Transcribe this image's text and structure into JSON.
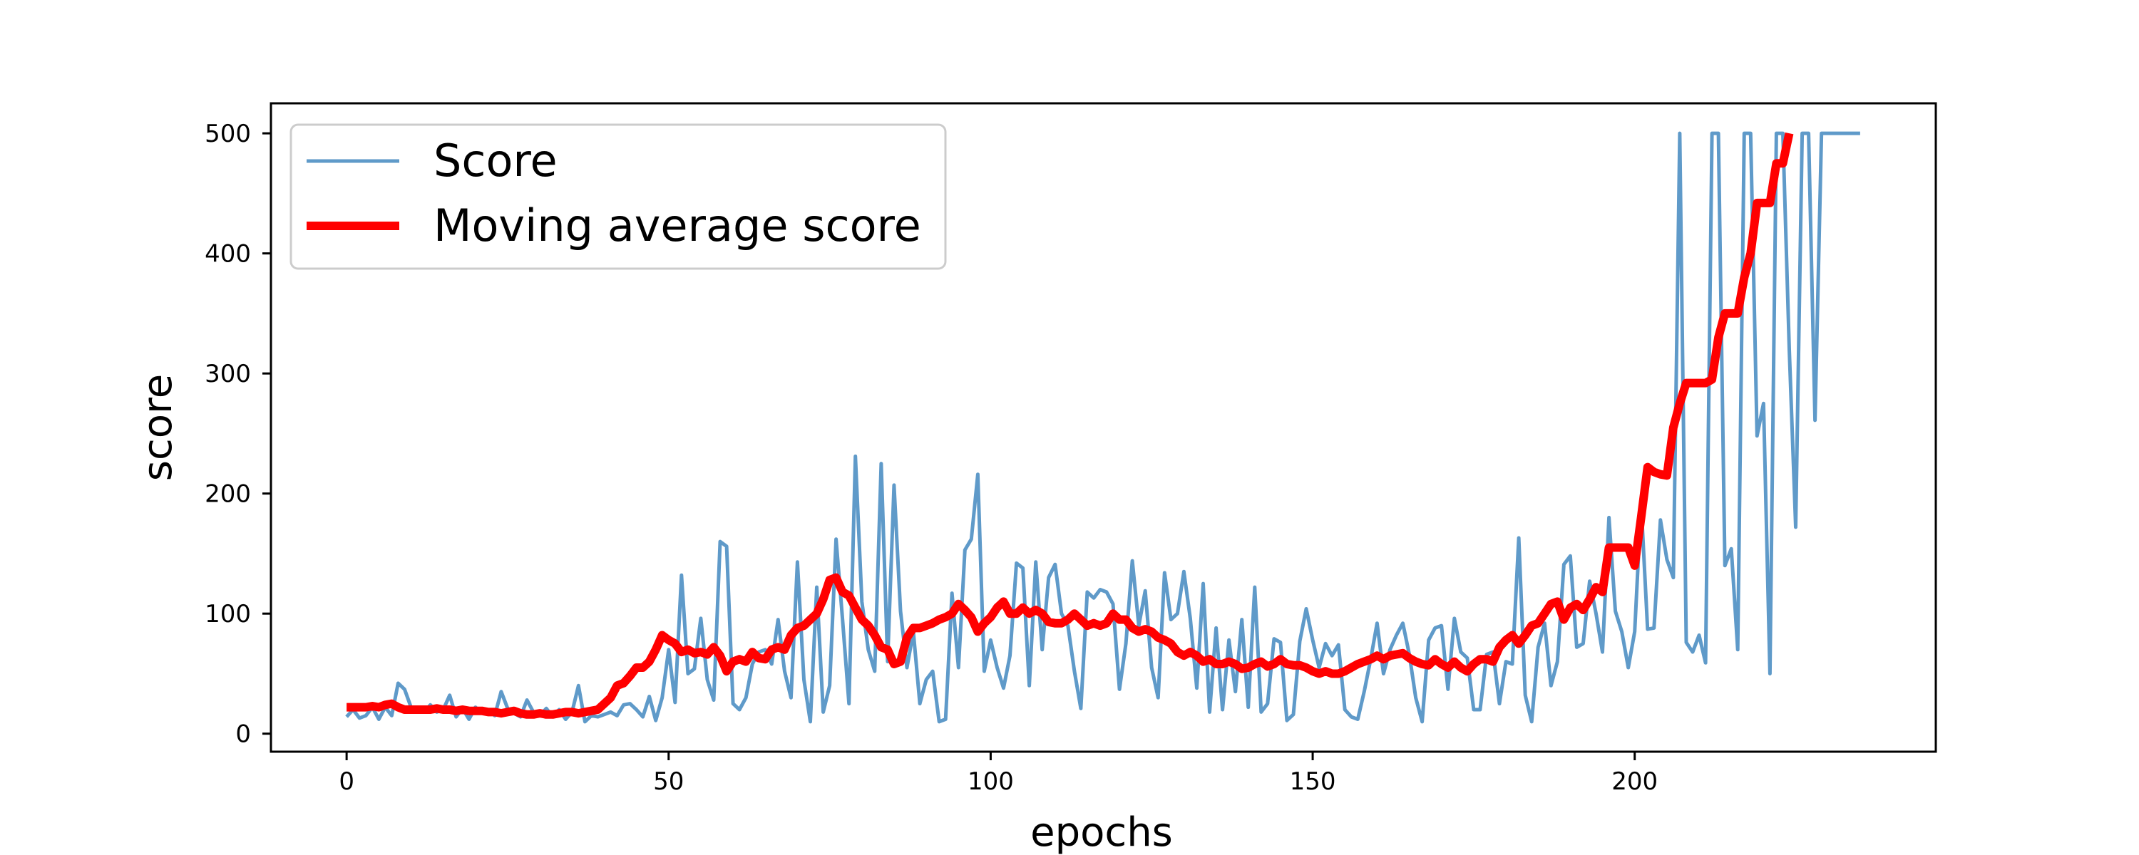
{
  "chart_data": {
    "type": "line",
    "title": "",
    "xlabel": "epochs",
    "ylabel": "score",
    "xlim": [
      -11.75,
      246.75
    ],
    "ylim": [
      -15,
      525
    ],
    "xticks": [
      0,
      50,
      100,
      150,
      200
    ],
    "yticks": [
      0,
      100,
      200,
      300,
      400,
      500
    ],
    "grid": false,
    "legend_position": "upper left",
    "series": [
      {
        "name": "Score",
        "color": "#5f9ac9",
        "values": [
          14,
          20,
          13,
          15,
          22,
          12,
          22,
          15,
          42,
          37,
          22,
          21,
          18,
          24,
          18,
          20,
          32,
          14,
          21,
          12,
          22,
          17,
          20,
          15,
          35,
          21,
          17,
          14,
          28,
          18,
          15,
          21,
          14,
          20,
          12,
          18,
          40,
          10,
          15,
          14,
          16,
          18,
          15,
          24,
          25,
          20,
          14,
          31,
          11,
          30,
          70,
          26,
          132,
          50,
          54,
          96,
          45,
          28,
          160,
          156,
          25,
          20,
          30,
          58,
          68,
          70,
          58,
          95,
          52,
          30,
          143,
          45,
          10,
          122,
          18,
          40,
          162,
          95,
          25,
          231,
          110,
          70,
          52,
          225,
          60,
          207,
          102,
          55,
          85,
          25,
          45,
          52,
          10,
          12,
          117,
          55,
          153,
          162,
          216,
          52,
          78,
          55,
          38,
          65,
          142,
          138,
          40,
          143,
          70,
          130,
          141,
          100,
          90,
          52,
          21,
          118,
          113,
          120,
          118,
          108,
          37,
          75,
          144,
          90,
          119,
          55,
          30,
          134,
          95,
          100,
          135,
          96,
          38,
          125,
          18,
          88,
          20,
          78,
          35,
          95,
          22,
          122,
          18,
          25,
          79,
          76,
          11,
          16,
          77,
          104,
          78,
          55,
          75,
          65,
          74,
          20,
          14,
          12,
          35,
          62,
          92,
          50,
          70,
          82,
          92,
          66,
          30,
          10,
          78,
          88,
          90,
          37,
          96,
          68,
          63,
          20,
          20,
          66,
          68,
          25,
          60,
          58,
          163,
          32,
          10,
          72,
          92,
          40,
          60,
          141,
          148,
          72,
          75,
          127,
          100,
          68,
          180,
          102,
          85,
          55,
          85,
          192,
          87,
          88,
          178,
          145,
          130,
          500,
          76,
          68,
          82,
          59,
          500,
          500,
          140,
          154,
          70,
          500,
          500,
          248,
          275,
          50,
          500,
          500,
          320,
          172,
          500,
          500,
          261,
          500,
          500,
          500,
          500,
          500,
          500,
          500
        ]
      },
      {
        "name": "Moving average score",
        "color": "#ff0000",
        "values": [
          22,
          22,
          22,
          22,
          23,
          22,
          24,
          25,
          22,
          20,
          20,
          20,
          20,
          20,
          21,
          20,
          20,
          19,
          20,
          19,
          19,
          19,
          18,
          18,
          17,
          18,
          19,
          17,
          16,
          16,
          17,
          16,
          16,
          17,
          18,
          18,
          17,
          18,
          19,
          20,
          25,
          30,
          40,
          42,
          48,
          55,
          55,
          60,
          70,
          82,
          78,
          75,
          68,
          70,
          67,
          68,
          66,
          72,
          65,
          52,
          60,
          62,
          60,
          68,
          63,
          62,
          70,
          72,
          70,
          82,
          88,
          90,
          95,
          100,
          112,
          128,
          130,
          118,
          115,
          105,
          95,
          90,
          82,
          72,
          70,
          58,
          60,
          80,
          88,
          88,
          90,
          92,
          95,
          97,
          100,
          108,
          103,
          97,
          85,
          92,
          97,
          105,
          110,
          100,
          100,
          105,
          100,
          103,
          100,
          93,
          92,
          92,
          95,
          100,
          95,
          90,
          92,
          90,
          92,
          100,
          95,
          95,
          88,
          85,
          87,
          85,
          80,
          78,
          75,
          68,
          65,
          68,
          65,
          60,
          62,
          58,
          58,
          60,
          58,
          54,
          55,
          58,
          60,
          56,
          58,
          62,
          58,
          57,
          57,
          55,
          52,
          50,
          52,
          50,
          50,
          52,
          55,
          58,
          60,
          62,
          65,
          62,
          65,
          66,
          67,
          63,
          60,
          58,
          57,
          62,
          58,
          55,
          60,
          55,
          52,
          58,
          62,
          62,
          60,
          72,
          78,
          82,
          75,
          82,
          90,
          92,
          100,
          108,
          110,
          95,
          105,
          108,
          103,
          112,
          122,
          118,
          155,
          155,
          155,
          155,
          140,
          180,
          222,
          218,
          216,
          215,
          255,
          275,
          292,
          292,
          292,
          292,
          295,
          330,
          350,
          350,
          350,
          380,
          400,
          442,
          442,
          442,
          475,
          475,
          500
        ]
      }
    ]
  }
}
